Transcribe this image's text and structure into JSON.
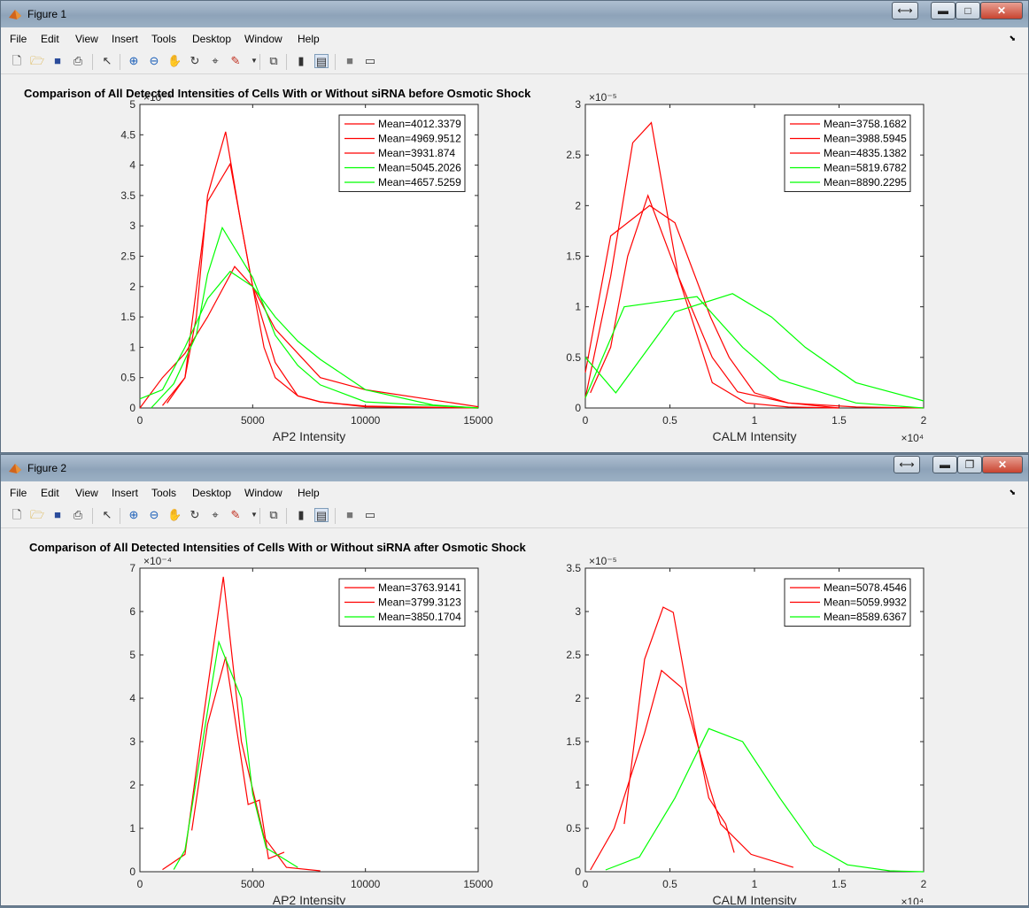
{
  "colors": {
    "red": "#ff0000",
    "green": "#00ff00",
    "titlebar": "#9bb0c4"
  },
  "menu": [
    "File",
    "Edit",
    "View",
    "Insert",
    "Tools",
    "Desktop",
    "Window",
    "Help"
  ],
  "toolbar_icons": [
    "new-figure-icon",
    "open-file-icon",
    "save-icon",
    "print-icon",
    "edit-plot-arrow-icon",
    "zoom-in-icon",
    "zoom-out-icon",
    "pan-hand-icon",
    "rotate-3d-icon",
    "data-cursor-icon",
    "brush-icon",
    "link-plot-icon",
    "insert-colorbar-icon",
    "insert-legend-icon",
    "hide-plot-tools-icon",
    "show-plot-tools-icon"
  ],
  "windows": [
    {
      "title": "Figure 1",
      "chart_title": "Comparison of All Detected Intensities of Cells With or Without siRNA before Osmotic Shock",
      "charts": [
        {
          "type": "line",
          "xlabel": "AP2 Intensity",
          "xlim": [
            0,
            15000
          ],
          "xticks": [
            "0",
            "5000",
            "10000",
            "15000"
          ],
          "ylim": [
            0,
            5
          ],
          "yticks": [
            "0",
            "0.5",
            "1",
            "1.5",
            "2",
            "2.5",
            "3",
            "3.5",
            "4",
            "4.5",
            "5"
          ],
          "exponent": "×10⁻⁴",
          "series": [
            {
              "name": "Mean=4012.3379",
              "color": "red",
              "x": [
                1000,
                2000,
                3000,
                4000,
                5000,
                6000,
                7000,
                8000,
                10000,
                15000
              ],
              "y": [
                0.04,
                0.5,
                3.4,
                4.02,
                2.0,
                0.75,
                0.2,
                0.1,
                0.02,
                0.0
              ]
            },
            {
              "name": "Mean=4969.9512",
              "color": "red",
              "x": [
                0,
                1000,
                2000,
                3000,
                4200,
                5000,
                6000,
                7000,
                8000,
                10000,
                15000
              ],
              "y": [
                0,
                0.5,
                0.9,
                1.5,
                2.33,
                2.0,
                1.3,
                0.9,
                0.5,
                0.3,
                0.02
              ]
            },
            {
              "name": "Mean=3931.874",
              "color": "red",
              "x": [
                1200,
                2000,
                2500,
                3000,
                3800,
                4500,
                5500,
                6000,
                7000,
                8000,
                10000,
                15000
              ],
              "y": [
                0.08,
                0.5,
                1.5,
                3.5,
                4.55,
                3.0,
                1.0,
                0.5,
                0.2,
                0.1,
                0.03,
                0.0
              ]
            },
            {
              "name": "Mean=5045.2026",
              "color": "green",
              "x": [
                0,
                1000,
                2000,
                3000,
                4000,
                5000,
                6000,
                7000,
                8000,
                10000,
                13000,
                15000
              ],
              "y": [
                0.15,
                0.3,
                1.0,
                1.8,
                2.25,
                2.0,
                1.5,
                1.1,
                0.8,
                0.3,
                0.05,
                0.0
              ]
            },
            {
              "name": "Mean=4657.5259",
              "color": "green",
              "x": [
                500,
                1500,
                2500,
                3000,
                3650,
                5000,
                6000,
                7000,
                8000,
                10000,
                15000
              ],
              "y": [
                0,
                0.4,
                1.2,
                2.2,
                2.97,
                2.15,
                1.2,
                0.7,
                0.38,
                0.1,
                0.0
              ]
            }
          ]
        },
        {
          "type": "line",
          "xlabel": "CALM Intensity",
          "xlim": [
            0,
            20000
          ],
          "xticks": [
            "0",
            "0.5",
            "1",
            "1.5",
            "2"
          ],
          "xexponent": "×10⁴",
          "ylim": [
            0,
            3
          ],
          "yticks": [
            "0",
            "0.5",
            "1",
            "1.5",
            "2",
            "2.5",
            "3"
          ],
          "exponent": "×10⁻⁵",
          "series": [
            {
              "name": "Mean=3758.1682",
              "color": "red",
              "x": [
                0,
                1500,
                2800,
                3900,
                5500,
                7500,
                9500,
                12000,
                15000
              ],
              "y": [
                0.1,
                1.3,
                2.62,
                2.82,
                1.3,
                0.25,
                0.05,
                0.01,
                0.0
              ]
            },
            {
              "name": "Mean=3988.5945",
              "color": "red",
              "x": [
                0,
                1500,
                3800,
                5300,
                7400,
                8500,
                10000,
                12000,
                15000
              ],
              "y": [
                0.35,
                1.7,
                2.0,
                1.83,
                0.9,
                0.5,
                0.15,
                0.05,
                0.0
              ]
            },
            {
              "name": "Mean=4835.1382",
              "color": "red",
              "x": [
                300,
                1500,
                2500,
                3700,
                5500,
                7500,
                9000,
                12000,
                16000,
                20000
              ],
              "y": [
                0.15,
                0.6,
                1.5,
                2.1,
                1.3,
                0.5,
                0.16,
                0.05,
                0.01,
                0.0
              ]
            },
            {
              "name": "Mean=5819.6782",
              "color": "green",
              "x": [
                0,
                2300,
                6600,
                9300,
                11500,
                16000,
                20000
              ],
              "y": [
                0.1,
                1.0,
                1.1,
                0.6,
                0.28,
                0.05,
                0.0
              ]
            },
            {
              "name": "Mean=8890.2295",
              "color": "green",
              "x": [
                0,
                1800,
                5300,
                8700,
                11000,
                13000,
                16000,
                20000
              ],
              "y": [
                0.5,
                0.15,
                0.95,
                1.13,
                0.9,
                0.6,
                0.25,
                0.07
              ]
            }
          ]
        }
      ]
    },
    {
      "title": "Figure 2",
      "chart_title": "Comparison of All Detected Intensities of Cells With or Without siRNA after Osmotic Shock",
      "charts": [
        {
          "type": "line",
          "xlabel": "AP2 Intensity",
          "xlim": [
            0,
            15000
          ],
          "xticks": [
            "0",
            "5000",
            "10000",
            "15000"
          ],
          "ylim": [
            0,
            7
          ],
          "yticks": [
            "0",
            "1",
            "2",
            "3",
            "4",
            "5",
            "6",
            "7"
          ],
          "exponent": "×10⁻⁴",
          "series": [
            {
              "name": "Mean=3763.9141",
              "color": "red",
              "x": [
                1000,
                2000,
                2800,
                3700,
                4500,
                5500,
                6500,
                8000
              ],
              "y": [
                0.05,
                0.4,
                3.5,
                6.8,
                3.0,
                0.8,
                0.1,
                0.02
              ]
            },
            {
              "name": "Mean=3799.3123",
              "color": "red",
              "x": [
                2300,
                3000,
                3800,
                4800,
                5300,
                5700,
                6400
              ],
              "y": [
                0.95,
                3.4,
                4.95,
                1.55,
                1.65,
                0.3,
                0.45
              ]
            },
            {
              "name": "Mean=3850.1704",
              "color": "green",
              "x": [
                1500,
                2000,
                3500,
                4500,
                5000,
                5600,
                7000
              ],
              "y": [
                0.05,
                0.5,
                5.3,
                4.0,
                1.8,
                0.55,
                0.1
              ]
            }
          ]
        },
        {
          "type": "line",
          "xlabel": "CALM Intensity",
          "xlim": [
            0,
            20000
          ],
          "xticks": [
            "0",
            "0.5",
            "1",
            "1.5",
            "2"
          ],
          "xexponent": "×10⁴",
          "ylim": [
            0,
            3.5
          ],
          "yticks": [
            "0",
            "0.5",
            "1",
            "1.5",
            "2",
            "2.5",
            "3",
            "3.5"
          ],
          "exponent": "×10⁻⁵",
          "series": [
            {
              "name": "Mean=5078.4546",
              "color": "red",
              "x": [
                2300,
                3500,
                4600,
                5200,
                6200,
                7300,
                8300,
                8800
              ],
              "y": [
                0.55,
                2.45,
                3.05,
                2.99,
                1.9,
                0.85,
                0.55,
                0.22
              ]
            },
            {
              "name": "Mean=5059.9932",
              "color": "red",
              "x": [
                300,
                1700,
                3500,
                4500,
                5700,
                7300,
                8000,
                9800,
                12300
              ],
              "y": [
                0.02,
                0.5,
                1.6,
                2.32,
                2.12,
                1.0,
                0.55,
                0.2,
                0.05
              ]
            },
            {
              "name": "Mean=8589.6367",
              "color": "green",
              "x": [
                1200,
                3200,
                5300,
                7300,
                9300,
                11500,
                13500,
                15500,
                18000,
                20000
              ],
              "y": [
                0.02,
                0.17,
                0.85,
                1.65,
                1.5,
                0.85,
                0.3,
                0.08,
                0.01,
                0.0
              ]
            }
          ]
        }
      ]
    }
  ]
}
